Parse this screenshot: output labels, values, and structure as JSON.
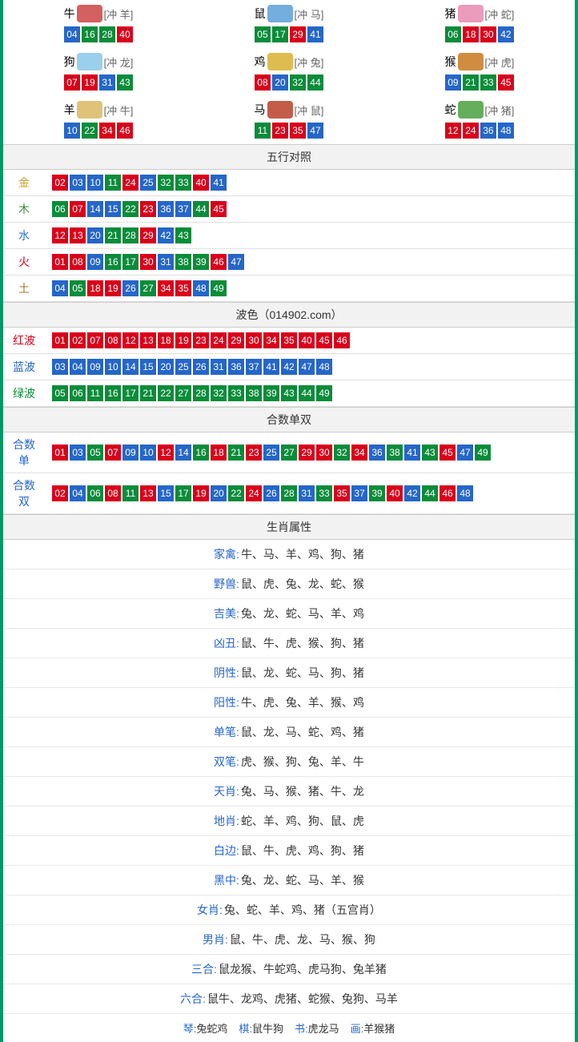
{
  "colors": {
    "border": "#009966",
    "red": "#d9001b",
    "blue": "#2566c8",
    "green": "#0a8c3a",
    "header_bg": "#f2f2f2"
  },
  "zodiac": [
    {
      "name": "牛",
      "clash": "[冲 羊]",
      "icon_color": "#c44",
      "balls": [
        {
          "n": "04",
          "c": "blue"
        },
        {
          "n": "16",
          "c": "green"
        },
        {
          "n": "28",
          "c": "green"
        },
        {
          "n": "40",
          "c": "red"
        }
      ]
    },
    {
      "name": "鼠",
      "clash": "[冲 马]",
      "icon_color": "#5aa0d8",
      "balls": [
        {
          "n": "05",
          "c": "green"
        },
        {
          "n": "17",
          "c": "green"
        },
        {
          "n": "29",
          "c": "red"
        },
        {
          "n": "41",
          "c": "blue"
        }
      ]
    },
    {
      "name": "猪",
      "clash": "[冲 蛇]",
      "icon_color": "#e88ab0",
      "balls": [
        {
          "n": "06",
          "c": "green"
        },
        {
          "n": "18",
          "c": "red"
        },
        {
          "n": "30",
          "c": "red"
        },
        {
          "n": "42",
          "c": "blue"
        }
      ]
    },
    {
      "name": "狗",
      "clash": "[冲 龙]",
      "icon_color": "#88c8e8",
      "balls": [
        {
          "n": "07",
          "c": "red"
        },
        {
          "n": "19",
          "c": "red"
        },
        {
          "n": "31",
          "c": "blue"
        },
        {
          "n": "43",
          "c": "green"
        }
      ]
    },
    {
      "name": "鸡",
      "clash": "[冲 兔]",
      "icon_color": "#d8b030",
      "balls": [
        {
          "n": "08",
          "c": "red"
        },
        {
          "n": "20",
          "c": "blue"
        },
        {
          "n": "32",
          "c": "green"
        },
        {
          "n": "44",
          "c": "green"
        }
      ]
    },
    {
      "name": "猴",
      "clash": "[冲 虎]",
      "icon_color": "#c87820",
      "balls": [
        {
          "n": "09",
          "c": "blue"
        },
        {
          "n": "21",
          "c": "green"
        },
        {
          "n": "33",
          "c": "green"
        },
        {
          "n": "45",
          "c": "red"
        }
      ]
    },
    {
      "name": "羊",
      "clash": "[冲 牛]",
      "icon_color": "#d8b860",
      "balls": [
        {
          "n": "10",
          "c": "blue"
        },
        {
          "n": "22",
          "c": "green"
        },
        {
          "n": "34",
          "c": "red"
        },
        {
          "n": "46",
          "c": "red"
        }
      ]
    },
    {
      "name": "马",
      "clash": "[冲 鼠]",
      "icon_color": "#b84028",
      "balls": [
        {
          "n": "11",
          "c": "green"
        },
        {
          "n": "23",
          "c": "red"
        },
        {
          "n": "35",
          "c": "red"
        },
        {
          "n": "47",
          "c": "blue"
        }
      ]
    },
    {
      "name": "蛇",
      "clash": "[冲 猪]",
      "icon_color": "#4aa040",
      "balls": [
        {
          "n": "12",
          "c": "red"
        },
        {
          "n": "24",
          "c": "red"
        },
        {
          "n": "36",
          "c": "blue"
        },
        {
          "n": "48",
          "c": "blue"
        }
      ]
    }
  ],
  "sections": {
    "wuxing_title": "五行对照",
    "bose_title": "波色（014902.com）",
    "heshu_title": "合数单双",
    "shengxiao_title": "生肖属性"
  },
  "wuxing": [
    {
      "label": "金",
      "cls": "c-gold",
      "balls": [
        {
          "n": "02",
          "c": "red"
        },
        {
          "n": "03",
          "c": "blue"
        },
        {
          "n": "10",
          "c": "blue"
        },
        {
          "n": "11",
          "c": "green"
        },
        {
          "n": "24",
          "c": "red"
        },
        {
          "n": "25",
          "c": "blue"
        },
        {
          "n": "32",
          "c": "green"
        },
        {
          "n": "33",
          "c": "green"
        },
        {
          "n": "40",
          "c": "red"
        },
        {
          "n": "41",
          "c": "blue"
        }
      ]
    },
    {
      "label": "木",
      "cls": "c-wood",
      "balls": [
        {
          "n": "06",
          "c": "green"
        },
        {
          "n": "07",
          "c": "red"
        },
        {
          "n": "14",
          "c": "blue"
        },
        {
          "n": "15",
          "c": "blue"
        },
        {
          "n": "22",
          "c": "green"
        },
        {
          "n": "23",
          "c": "red"
        },
        {
          "n": "36",
          "c": "blue"
        },
        {
          "n": "37",
          "c": "blue"
        },
        {
          "n": "44",
          "c": "green"
        },
        {
          "n": "45",
          "c": "red"
        }
      ]
    },
    {
      "label": "水",
      "cls": "c-water",
      "balls": [
        {
          "n": "12",
          "c": "red"
        },
        {
          "n": "13",
          "c": "red"
        },
        {
          "n": "20",
          "c": "blue"
        },
        {
          "n": "21",
          "c": "green"
        },
        {
          "n": "28",
          "c": "green"
        },
        {
          "n": "29",
          "c": "red"
        },
        {
          "n": "42",
          "c": "blue"
        },
        {
          "n": "43",
          "c": "green"
        }
      ]
    },
    {
      "label": "火",
      "cls": "c-fire",
      "balls": [
        {
          "n": "01",
          "c": "red"
        },
        {
          "n": "08",
          "c": "red"
        },
        {
          "n": "09",
          "c": "blue"
        },
        {
          "n": "16",
          "c": "green"
        },
        {
          "n": "17",
          "c": "green"
        },
        {
          "n": "30",
          "c": "red"
        },
        {
          "n": "31",
          "c": "blue"
        },
        {
          "n": "38",
          "c": "green"
        },
        {
          "n": "39",
          "c": "green"
        },
        {
          "n": "46",
          "c": "red"
        },
        {
          "n": "47",
          "c": "blue"
        }
      ]
    },
    {
      "label": "土",
      "cls": "c-earth",
      "balls": [
        {
          "n": "04",
          "c": "blue"
        },
        {
          "n": "05",
          "c": "green"
        },
        {
          "n": "18",
          "c": "red"
        },
        {
          "n": "19",
          "c": "red"
        },
        {
          "n": "26",
          "c": "blue"
        },
        {
          "n": "27",
          "c": "green"
        },
        {
          "n": "34",
          "c": "red"
        },
        {
          "n": "35",
          "c": "red"
        },
        {
          "n": "48",
          "c": "blue"
        },
        {
          "n": "49",
          "c": "green"
        }
      ]
    }
  ],
  "bose": [
    {
      "label": "红波",
      "cls": "c-red",
      "balls": [
        {
          "n": "01",
          "c": "red"
        },
        {
          "n": "02",
          "c": "red"
        },
        {
          "n": "07",
          "c": "red"
        },
        {
          "n": "08",
          "c": "red"
        },
        {
          "n": "12",
          "c": "red"
        },
        {
          "n": "13",
          "c": "red"
        },
        {
          "n": "18",
          "c": "red"
        },
        {
          "n": "19",
          "c": "red"
        },
        {
          "n": "23",
          "c": "red"
        },
        {
          "n": "24",
          "c": "red"
        },
        {
          "n": "29",
          "c": "red"
        },
        {
          "n": "30",
          "c": "red"
        },
        {
          "n": "34",
          "c": "red"
        },
        {
          "n": "35",
          "c": "red"
        },
        {
          "n": "40",
          "c": "red"
        },
        {
          "n": "45",
          "c": "red"
        },
        {
          "n": "46",
          "c": "red"
        }
      ]
    },
    {
      "label": "蓝波",
      "cls": "c-blue",
      "balls": [
        {
          "n": "03",
          "c": "blue"
        },
        {
          "n": "04",
          "c": "blue"
        },
        {
          "n": "09",
          "c": "blue"
        },
        {
          "n": "10",
          "c": "blue"
        },
        {
          "n": "14",
          "c": "blue"
        },
        {
          "n": "15",
          "c": "blue"
        },
        {
          "n": "20",
          "c": "blue"
        },
        {
          "n": "25",
          "c": "blue"
        },
        {
          "n": "26",
          "c": "blue"
        },
        {
          "n": "31",
          "c": "blue"
        },
        {
          "n": "36",
          "c": "blue"
        },
        {
          "n": "37",
          "c": "blue"
        },
        {
          "n": "41",
          "c": "blue"
        },
        {
          "n": "42",
          "c": "blue"
        },
        {
          "n": "47",
          "c": "blue"
        },
        {
          "n": "48",
          "c": "blue"
        }
      ]
    },
    {
      "label": "绿波",
      "cls": "c-green",
      "balls": [
        {
          "n": "05",
          "c": "green"
        },
        {
          "n": "06",
          "c": "green"
        },
        {
          "n": "11",
          "c": "green"
        },
        {
          "n": "16",
          "c": "green"
        },
        {
          "n": "17",
          "c": "green"
        },
        {
          "n": "21",
          "c": "green"
        },
        {
          "n": "22",
          "c": "green"
        },
        {
          "n": "27",
          "c": "green"
        },
        {
          "n": "28",
          "c": "green"
        },
        {
          "n": "32",
          "c": "green"
        },
        {
          "n": "33",
          "c": "green"
        },
        {
          "n": "38",
          "c": "green"
        },
        {
          "n": "39",
          "c": "green"
        },
        {
          "n": "43",
          "c": "green"
        },
        {
          "n": "44",
          "c": "green"
        },
        {
          "n": "49",
          "c": "green"
        }
      ]
    }
  ],
  "heshu": [
    {
      "label": "合数单",
      "cls": "c-blue",
      "balls": [
        {
          "n": "01",
          "c": "red"
        },
        {
          "n": "03",
          "c": "blue"
        },
        {
          "n": "05",
          "c": "green"
        },
        {
          "n": "07",
          "c": "red"
        },
        {
          "n": "09",
          "c": "blue"
        },
        {
          "n": "10",
          "c": "blue"
        },
        {
          "n": "12",
          "c": "red"
        },
        {
          "n": "14",
          "c": "blue"
        },
        {
          "n": "16",
          "c": "green"
        },
        {
          "n": "18",
          "c": "red"
        },
        {
          "n": "21",
          "c": "green"
        },
        {
          "n": "23",
          "c": "red"
        },
        {
          "n": "25",
          "c": "blue"
        },
        {
          "n": "27",
          "c": "green"
        },
        {
          "n": "29",
          "c": "red"
        },
        {
          "n": "30",
          "c": "red"
        },
        {
          "n": "32",
          "c": "green"
        },
        {
          "n": "34",
          "c": "red"
        },
        {
          "n": "36",
          "c": "blue"
        },
        {
          "n": "38",
          "c": "green"
        },
        {
          "n": "41",
          "c": "blue"
        },
        {
          "n": "43",
          "c": "green"
        },
        {
          "n": "45",
          "c": "red"
        },
        {
          "n": "47",
          "c": "blue"
        },
        {
          "n": "49",
          "c": "green"
        }
      ]
    },
    {
      "label": "合数双",
      "cls": "c-blue",
      "balls": [
        {
          "n": "02",
          "c": "red"
        },
        {
          "n": "04",
          "c": "blue"
        },
        {
          "n": "06",
          "c": "green"
        },
        {
          "n": "08",
          "c": "red"
        },
        {
          "n": "11",
          "c": "green"
        },
        {
          "n": "13",
          "c": "red"
        },
        {
          "n": "15",
          "c": "blue"
        },
        {
          "n": "17",
          "c": "green"
        },
        {
          "n": "19",
          "c": "red"
        },
        {
          "n": "20",
          "c": "blue"
        },
        {
          "n": "22",
          "c": "green"
        },
        {
          "n": "24",
          "c": "red"
        },
        {
          "n": "26",
          "c": "blue"
        },
        {
          "n": "28",
          "c": "green"
        },
        {
          "n": "31",
          "c": "blue"
        },
        {
          "n": "33",
          "c": "green"
        },
        {
          "n": "35",
          "c": "red"
        },
        {
          "n": "37",
          "c": "blue"
        },
        {
          "n": "39",
          "c": "green"
        },
        {
          "n": "40",
          "c": "red"
        },
        {
          "n": "42",
          "c": "blue"
        },
        {
          "n": "44",
          "c": "green"
        },
        {
          "n": "46",
          "c": "red"
        },
        {
          "n": "48",
          "c": "blue"
        }
      ]
    }
  ],
  "attrs": [
    {
      "label": "家禽:",
      "value": "牛、马、羊、鸡、狗、猪"
    },
    {
      "label": "野兽:",
      "value": "鼠、虎、兔、龙、蛇、猴"
    },
    {
      "label": "吉美:",
      "value": "兔、龙、蛇、马、羊、鸡"
    },
    {
      "label": "凶丑:",
      "value": "鼠、牛、虎、猴、狗、猪"
    },
    {
      "label": "阴性:",
      "value": "鼠、龙、蛇、马、狗、猪"
    },
    {
      "label": "阳性:",
      "value": "牛、虎、兔、羊、猴、鸡"
    },
    {
      "label": "单笔:",
      "value": "鼠、龙、马、蛇、鸡、猪"
    },
    {
      "label": "双笔:",
      "value": "虎、猴、狗、兔、羊、牛"
    },
    {
      "label": "天肖:",
      "value": "兔、马、猴、猪、牛、龙"
    },
    {
      "label": "地肖:",
      "value": "蛇、羊、鸡、狗、鼠、虎"
    },
    {
      "label": "白边:",
      "value": "鼠、牛、虎、鸡、狗、猪"
    },
    {
      "label": "黑中:",
      "value": "兔、龙、蛇、马、羊、猴"
    },
    {
      "label": "女肖:",
      "value": "兔、蛇、羊、鸡、猪（五宫肖）"
    },
    {
      "label": "男肖:",
      "value": "鼠、牛、虎、龙、马、猴、狗"
    },
    {
      "label": "三合:",
      "value": "鼠龙猴、牛蛇鸡、虎马狗、兔羊猪"
    },
    {
      "label": "六合:",
      "value": "鼠牛、龙鸡、虎猪、蛇猴、兔狗、马羊"
    }
  ],
  "lastrow": [
    {
      "k": "琴:",
      "v": "兔蛇鸡"
    },
    {
      "k": "棋:",
      "v": "鼠牛狗"
    },
    {
      "k": "书:",
      "v": "虎龙马"
    },
    {
      "k": "画:",
      "v": "羊猴猪"
    }
  ]
}
